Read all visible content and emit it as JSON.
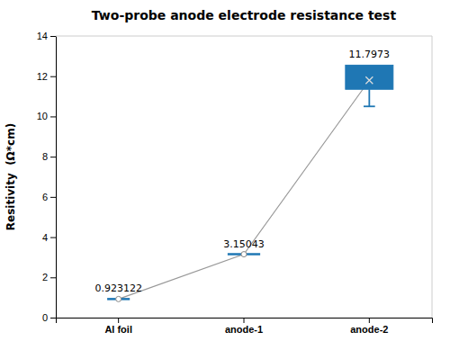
{
  "chart_data": {
    "type": "line",
    "title": "Two-probe anode electrode resistance test",
    "ylabel": "Resitivity  (Ω*cm)",
    "categories": [
      "Al foil",
      "anode-1",
      "anode-2"
    ],
    "values": [
      0.923122,
      3.15043,
      11.7973
    ],
    "data_labels": true,
    "box": {
      "category": "anode-2",
      "q1": 11.35,
      "q3": 12.55,
      "whisker_low": 10.5
    },
    "ylim": [
      0,
      14
    ],
    "yticks": [
      0,
      2,
      4,
      6,
      8,
      10,
      12,
      14
    ]
  }
}
